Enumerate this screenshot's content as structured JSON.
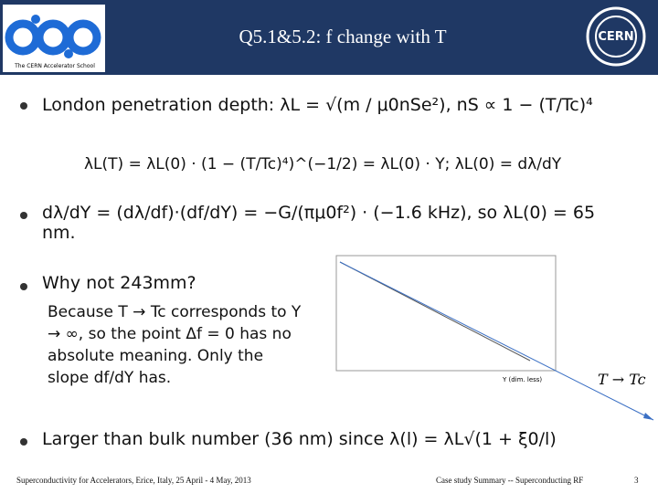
{
  "header": {
    "title": "Q5.1&5.2: f change with T",
    "logo_caption": "The CERN Accelerator School",
    "right_logo": "CERN"
  },
  "bullets": [
    "London penetration depth: λL = √(m / μ0nSe²), nS ∝ 1 − (T/Tc)⁴",
    "dλ/dY = (dλ/df)·(df/dY) = −G/(πμ0f²) · (−1.6 kHz), so λL(0) = 65 nm.",
    "Why not 243mm?",
    "Larger than bulk number (36 nm) since λ(l) = λL√(1 + ξ0/l)"
  ],
  "formula": "λL(T) = λL(0) · (1 − (T/Tc)⁴)^(−1/2) = λL(0) · Y;   λL(0) = dλ/dY",
  "explanation": "Because T → Tc corresponds to Y → ∞, so the point Δf = 0 has no absolute meaning. Only the slope df/dY has.",
  "figure": {
    "x_label": "Y (dim. less)",
    "annotation": "T → Tc"
  },
  "footer": {
    "left": "Superconductivity for Accelerators, Erice, Italy, 25 April - 4 May, 2013",
    "center": "Case study Summary -- Superconducting RF",
    "page": "3"
  }
}
